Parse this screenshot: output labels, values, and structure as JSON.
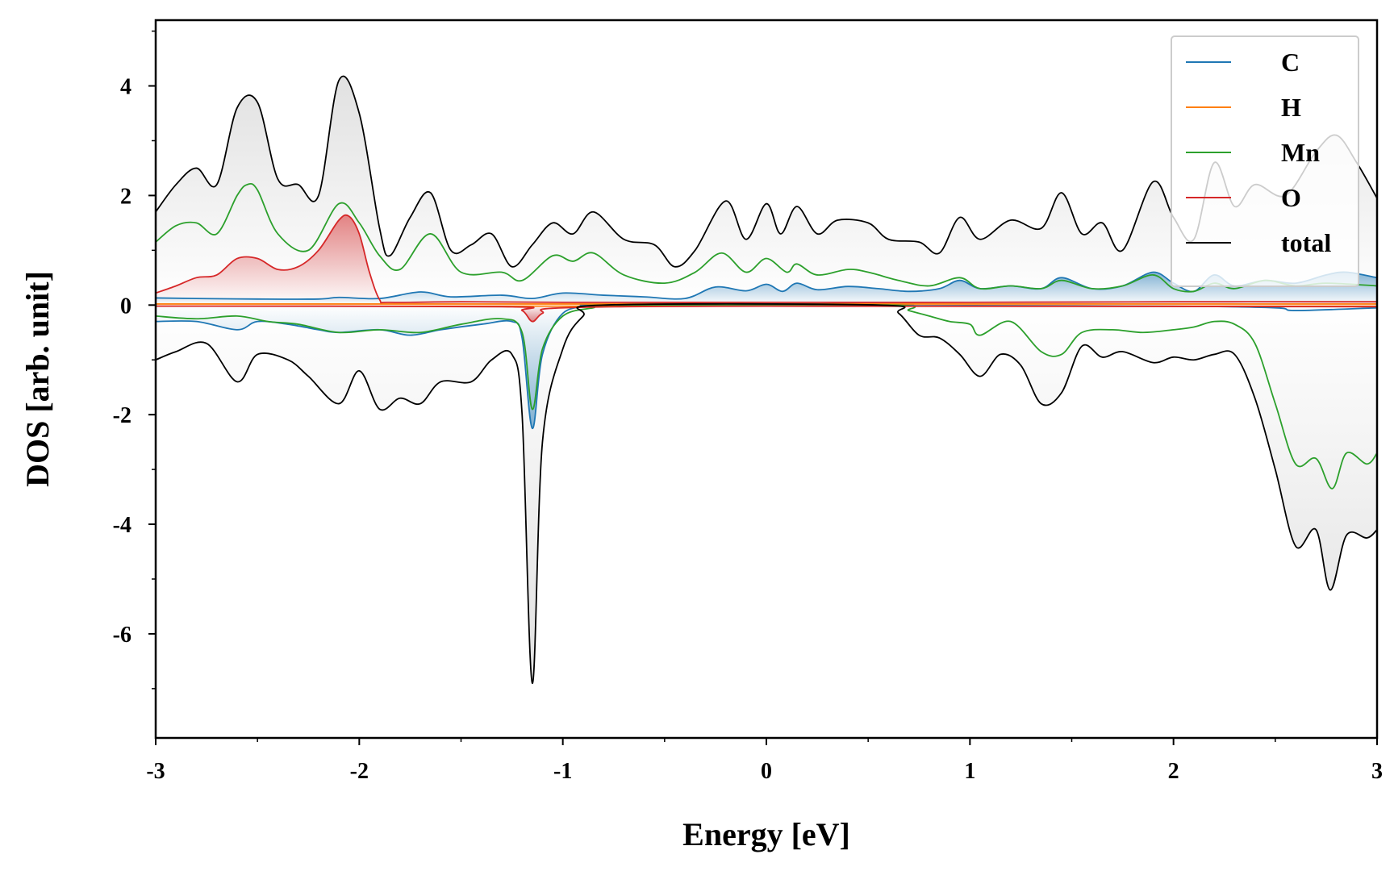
{
  "chart_data": {
    "type": "line",
    "title": "",
    "xlabel": "Energy [eV]",
    "ylabel": "DOS [arb. unit]",
    "xlim": [
      -3,
      3
    ],
    "ylim": [
      -7.9,
      5.2
    ],
    "grid": false,
    "legend_position": "top-right",
    "x_ticks": [
      "-3",
      "-2",
      "-1",
      "0",
      "1",
      "2",
      "3"
    ],
    "y_ticks": [
      "-6",
      "-4",
      "-2",
      "0",
      "2",
      "4"
    ],
    "series": [
      {
        "name": "C",
        "color": "#1f77b4",
        "fill": true,
        "up": [
          [
            -3,
            0.13
          ],
          [
            -2.8,
            0.12
          ],
          [
            -2.5,
            0.11
          ],
          [
            -2.2,
            0.11
          ],
          [
            -2.1,
            0.14
          ],
          [
            -1.9,
            0.12
          ],
          [
            -1.7,
            0.24
          ],
          [
            -1.55,
            0.15
          ],
          [
            -1.3,
            0.18
          ],
          [
            -1.15,
            0.12
          ],
          [
            -1.0,
            0.22
          ],
          [
            -0.8,
            0.18
          ],
          [
            -0.6,
            0.15
          ],
          [
            -0.4,
            0.12
          ],
          [
            -0.25,
            0.33
          ],
          [
            -0.1,
            0.26
          ],
          [
            0,
            0.38
          ],
          [
            0.08,
            0.25
          ],
          [
            0.15,
            0.4
          ],
          [
            0.25,
            0.28
          ],
          [
            0.4,
            0.34
          ],
          [
            0.55,
            0.3
          ],
          [
            0.7,
            0.25
          ],
          [
            0.85,
            0.3
          ],
          [
            0.95,
            0.45
          ],
          [
            1.05,
            0.3
          ],
          [
            1.2,
            0.35
          ],
          [
            1.35,
            0.3
          ],
          [
            1.45,
            0.5
          ],
          [
            1.6,
            0.3
          ],
          [
            1.75,
            0.35
          ],
          [
            1.9,
            0.6
          ],
          [
            2.0,
            0.4
          ],
          [
            2.1,
            0.25
          ],
          [
            2.2,
            0.55
          ],
          [
            2.3,
            0.35
          ],
          [
            2.45,
            0.45
          ],
          [
            2.6,
            0.4
          ],
          [
            2.75,
            0.55
          ],
          [
            2.85,
            0.6
          ],
          [
            3,
            0.5
          ]
        ],
        "down": [
          [
            -3,
            -0.3
          ],
          [
            -2.8,
            -0.3
          ],
          [
            -2.6,
            -0.45
          ],
          [
            -2.5,
            -0.3
          ],
          [
            -2.35,
            -0.35
          ],
          [
            -2.2,
            -0.45
          ],
          [
            -2.1,
            -0.5
          ],
          [
            -1.9,
            -0.45
          ],
          [
            -1.75,
            -0.55
          ],
          [
            -1.6,
            -0.45
          ],
          [
            -1.4,
            -0.35
          ],
          [
            -1.25,
            -0.3
          ],
          [
            -1.2,
            -0.6
          ],
          [
            -1.15,
            -2.25
          ],
          [
            -1.1,
            -0.9
          ],
          [
            -1.0,
            -0.15
          ],
          [
            -0.85,
            -0.02
          ],
          [
            -0.8,
            0
          ],
          [
            0.6,
            0
          ],
          [
            0.7,
            -0.01
          ],
          [
            1.0,
            -0.01
          ],
          [
            2.0,
            -0.02
          ],
          [
            2.5,
            -0.05
          ],
          [
            2.6,
            -0.1
          ],
          [
            3,
            -0.05
          ]
        ]
      },
      {
        "name": "H",
        "color": "#ff7f0e",
        "fill": false,
        "up": [
          [
            -3,
            0.02
          ],
          [
            3,
            0.02
          ]
        ],
        "down": [
          [
            -3,
            -0.02
          ],
          [
            3,
            -0.02
          ]
        ]
      },
      {
        "name": "Mn",
        "color": "#2ca02c",
        "fill": false,
        "up": [
          [
            -3,
            1.15
          ],
          [
            -2.9,
            1.45
          ],
          [
            -2.8,
            1.5
          ],
          [
            -2.7,
            1.3
          ],
          [
            -2.6,
            2.0
          ],
          [
            -2.55,
            2.2
          ],
          [
            -2.5,
            2.1
          ],
          [
            -2.4,
            1.3
          ],
          [
            -2.25,
            1.0
          ],
          [
            -2.1,
            1.85
          ],
          [
            -2.0,
            1.5
          ],
          [
            -1.9,
            0.9
          ],
          [
            -1.8,
            0.65
          ],
          [
            -1.65,
            1.3
          ],
          [
            -1.5,
            0.6
          ],
          [
            -1.3,
            0.6
          ],
          [
            -1.2,
            0.45
          ],
          [
            -1.05,
            0.9
          ],
          [
            -0.95,
            0.8
          ],
          [
            -0.85,
            0.95
          ],
          [
            -0.7,
            0.55
          ],
          [
            -0.5,
            0.4
          ],
          [
            -0.35,
            0.6
          ],
          [
            -0.22,
            0.95
          ],
          [
            -0.1,
            0.6
          ],
          [
            0,
            0.85
          ],
          [
            0.1,
            0.6
          ],
          [
            0.15,
            0.75
          ],
          [
            0.25,
            0.55
          ],
          [
            0.4,
            0.65
          ],
          [
            0.5,
            0.6
          ],
          [
            0.65,
            0.45
          ],
          [
            0.8,
            0.35
          ],
          [
            0.95,
            0.5
          ],
          [
            1.05,
            0.3
          ],
          [
            1.2,
            0.35
          ],
          [
            1.35,
            0.3
          ],
          [
            1.45,
            0.45
          ],
          [
            1.6,
            0.3
          ],
          [
            1.75,
            0.35
          ],
          [
            1.9,
            0.55
          ],
          [
            2.0,
            0.3
          ],
          [
            2.1,
            0.25
          ],
          [
            2.2,
            0.4
          ],
          [
            2.3,
            0.3
          ],
          [
            2.45,
            0.45
          ],
          [
            2.6,
            0.35
          ],
          [
            2.75,
            0.4
          ],
          [
            3,
            0.35
          ]
        ],
        "down": [
          [
            -3,
            -0.2
          ],
          [
            -2.8,
            -0.25
          ],
          [
            -2.6,
            -0.2
          ],
          [
            -2.45,
            -0.3
          ],
          [
            -2.3,
            -0.35
          ],
          [
            -2.1,
            -0.5
          ],
          [
            -1.9,
            -0.45
          ],
          [
            -1.7,
            -0.5
          ],
          [
            -1.5,
            -0.35
          ],
          [
            -1.3,
            -0.25
          ],
          [
            -1.2,
            -0.5
          ],
          [
            -1.15,
            -1.9
          ],
          [
            -1.1,
            -0.8
          ],
          [
            -1.0,
            -0.2
          ],
          [
            -0.85,
            -0.05
          ],
          [
            -0.75,
            0
          ],
          [
            0.6,
            0
          ],
          [
            0.7,
            -0.1
          ],
          [
            0.8,
            -0.2
          ],
          [
            0.9,
            -0.3
          ],
          [
            1.0,
            -0.35
          ],
          [
            1.05,
            -0.55
          ],
          [
            1.2,
            -0.3
          ],
          [
            1.35,
            -0.85
          ],
          [
            1.45,
            -0.9
          ],
          [
            1.55,
            -0.5
          ],
          [
            1.7,
            -0.45
          ],
          [
            1.85,
            -0.5
          ],
          [
            2.0,
            -0.45
          ],
          [
            2.1,
            -0.4
          ],
          [
            2.2,
            -0.3
          ],
          [
            2.3,
            -0.35
          ],
          [
            2.4,
            -0.7
          ],
          [
            2.5,
            -1.8
          ],
          [
            2.6,
            -2.9
          ],
          [
            2.7,
            -2.8
          ],
          [
            2.78,
            -3.35
          ],
          [
            2.85,
            -2.7
          ],
          [
            2.95,
            -2.9
          ],
          [
            3,
            -2.7
          ]
        ]
      },
      {
        "name": "O",
        "color": "#d62728",
        "fill": true,
        "up": [
          [
            -3,
            0.22
          ],
          [
            -2.9,
            0.35
          ],
          [
            -2.8,
            0.5
          ],
          [
            -2.7,
            0.55
          ],
          [
            -2.6,
            0.85
          ],
          [
            -2.5,
            0.85
          ],
          [
            -2.4,
            0.65
          ],
          [
            -2.3,
            0.7
          ],
          [
            -2.2,
            1.0
          ],
          [
            -2.1,
            1.55
          ],
          [
            -2.05,
            1.62
          ],
          [
            -2.0,
            1.3
          ],
          [
            -1.95,
            0.6
          ],
          [
            -1.9,
            0.1
          ],
          [
            -1.85,
            0.05
          ],
          [
            -1.5,
            0.06
          ],
          [
            -1.0,
            0.05
          ],
          [
            0,
            0.05
          ],
          [
            1,
            0.05
          ],
          [
            2,
            0.06
          ],
          [
            3,
            0.06
          ]
        ],
        "down": [
          [
            -3,
            -0.02
          ],
          [
            -1.3,
            -0.03
          ],
          [
            -1.2,
            -0.1
          ],
          [
            -1.15,
            -0.3
          ],
          [
            -1.1,
            -0.15
          ],
          [
            -1.0,
            -0.05
          ],
          [
            0,
            -0.02
          ],
          [
            3,
            -0.03
          ]
        ]
      },
      {
        "name": "total",
        "color": "#000000",
        "fill": true,
        "up": [
          [
            -3,
            1.7
          ],
          [
            -2.9,
            2.2
          ],
          [
            -2.8,
            2.5
          ],
          [
            -2.7,
            2.2
          ],
          [
            -2.6,
            3.6
          ],
          [
            -2.5,
            3.7
          ],
          [
            -2.4,
            2.3
          ],
          [
            -2.3,
            2.2
          ],
          [
            -2.2,
            2.0
          ],
          [
            -2.1,
            4.1
          ],
          [
            -2.0,
            3.5
          ],
          [
            -1.9,
            1.4
          ],
          [
            -1.85,
            0.9
          ],
          [
            -1.75,
            1.6
          ],
          [
            -1.65,
            2.05
          ],
          [
            -1.55,
            1.0
          ],
          [
            -1.45,
            1.1
          ],
          [
            -1.35,
            1.3
          ],
          [
            -1.25,
            0.7
          ],
          [
            -1.15,
            1.1
          ],
          [
            -1.05,
            1.5
          ],
          [
            -0.95,
            1.3
          ],
          [
            -0.85,
            1.7
          ],
          [
            -0.7,
            1.2
          ],
          [
            -0.55,
            1.1
          ],
          [
            -0.45,
            0.7
          ],
          [
            -0.35,
            1.0
          ],
          [
            -0.2,
            1.9
          ],
          [
            -0.1,
            1.2
          ],
          [
            0,
            1.85
          ],
          [
            0.07,
            1.3
          ],
          [
            0.15,
            1.8
          ],
          [
            0.25,
            1.3
          ],
          [
            0.35,
            1.55
          ],
          [
            0.5,
            1.5
          ],
          [
            0.6,
            1.2
          ],
          [
            0.75,
            1.15
          ],
          [
            0.85,
            0.95
          ],
          [
            0.95,
            1.6
          ],
          [
            1.05,
            1.2
          ],
          [
            1.2,
            1.55
          ],
          [
            1.35,
            1.4
          ],
          [
            1.45,
            2.05
          ],
          [
            1.55,
            1.3
          ],
          [
            1.65,
            1.5
          ],
          [
            1.75,
            1.0
          ],
          [
            1.9,
            2.25
          ],
          [
            2.0,
            1.6
          ],
          [
            2.1,
            1.2
          ],
          [
            2.2,
            2.6
          ],
          [
            2.3,
            1.8
          ],
          [
            2.4,
            2.2
          ],
          [
            2.55,
            2.0
          ],
          [
            2.7,
            2.8
          ],
          [
            2.8,
            3.1
          ],
          [
            2.9,
            2.6
          ],
          [
            3,
            1.95
          ]
        ],
        "down": [
          [
            -3,
            -1.0
          ],
          [
            -2.9,
            -0.85
          ],
          [
            -2.75,
            -0.7
          ],
          [
            -2.6,
            -1.4
          ],
          [
            -2.5,
            -0.9
          ],
          [
            -2.35,
            -1.0
          ],
          [
            -2.25,
            -1.3
          ],
          [
            -2.1,
            -1.8
          ],
          [
            -2.0,
            -1.2
          ],
          [
            -1.9,
            -1.9
          ],
          [
            -1.8,
            -1.7
          ],
          [
            -1.7,
            -1.8
          ],
          [
            -1.6,
            -1.4
          ],
          [
            -1.45,
            -1.4
          ],
          [
            -1.35,
            -1.0
          ],
          [
            -1.25,
            -0.9
          ],
          [
            -1.2,
            -2.0
          ],
          [
            -1.15,
            -6.9
          ],
          [
            -1.1,
            -2.5
          ],
          [
            -1.0,
            -0.8
          ],
          [
            -0.9,
            -0.2
          ],
          [
            -0.8,
            0
          ],
          [
            0.55,
            0
          ],
          [
            0.65,
            -0.15
          ],
          [
            0.75,
            -0.55
          ],
          [
            0.85,
            -0.6
          ],
          [
            0.95,
            -0.9
          ],
          [
            1.05,
            -1.3
          ],
          [
            1.15,
            -0.9
          ],
          [
            1.25,
            -1.1
          ],
          [
            1.35,
            -1.8
          ],
          [
            1.45,
            -1.6
          ],
          [
            1.55,
            -0.75
          ],
          [
            1.65,
            -0.95
          ],
          [
            1.75,
            -0.85
          ],
          [
            1.9,
            -1.05
          ],
          [
            2.0,
            -0.95
          ],
          [
            2.1,
            -1.0
          ],
          [
            2.2,
            -0.9
          ],
          [
            2.3,
            -0.9
          ],
          [
            2.4,
            -1.7
          ],
          [
            2.5,
            -3.0
          ],
          [
            2.6,
            -4.4
          ],
          [
            2.7,
            -4.1
          ],
          [
            2.77,
            -5.2
          ],
          [
            2.85,
            -4.2
          ],
          [
            2.95,
            -4.25
          ],
          [
            3,
            -4.1
          ]
        ]
      }
    ]
  }
}
